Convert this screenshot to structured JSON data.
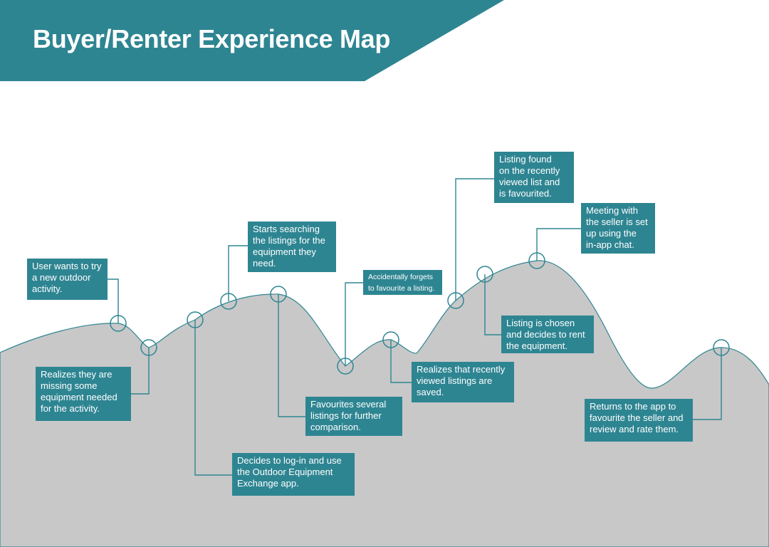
{
  "title": "Buyer/Renter Experience Map",
  "colors": {
    "accent": "#2e8592",
    "terrain": "#c8c8c8",
    "connector": "#2e8592",
    "text_on_accent": "#ffffff",
    "background": "#ffffff"
  },
  "steps": [
    {
      "id": "try-activity",
      "text": "User wants to try\na new outdoor\nactivity."
    },
    {
      "id": "missing-equipment",
      "text": "Realizes they are\nmissing some\nequipment needed\nfor the activity."
    },
    {
      "id": "login",
      "text": "Decides to log-in and use\nthe Outdoor Equipment\nExchange app."
    },
    {
      "id": "search",
      "text": "Starts searching\nthe listings for the\nequipment they\nneed."
    },
    {
      "id": "favourites-several",
      "text": "Favourites several\nlistings for further\ncomparison."
    },
    {
      "id": "forgets-favourite",
      "text": "Accidentally forgets\nto favourite a listing."
    },
    {
      "id": "recently-viewed",
      "text": "Realizes that recently\nviewed listings are\nsaved."
    },
    {
      "id": "listing-found",
      "text": "Listing found\non the recently\nviewed list and\nis favourited."
    },
    {
      "id": "listing-chosen",
      "text": "Listing is chosen\nand decides to rent\nthe equipment."
    },
    {
      "id": "meeting",
      "text": "Meeting with\nthe seller is set\nup using the\nin-app chat."
    },
    {
      "id": "review",
      "text": "Returns to the app to\nfavourite the seller and\nreview and rate them."
    }
  ]
}
